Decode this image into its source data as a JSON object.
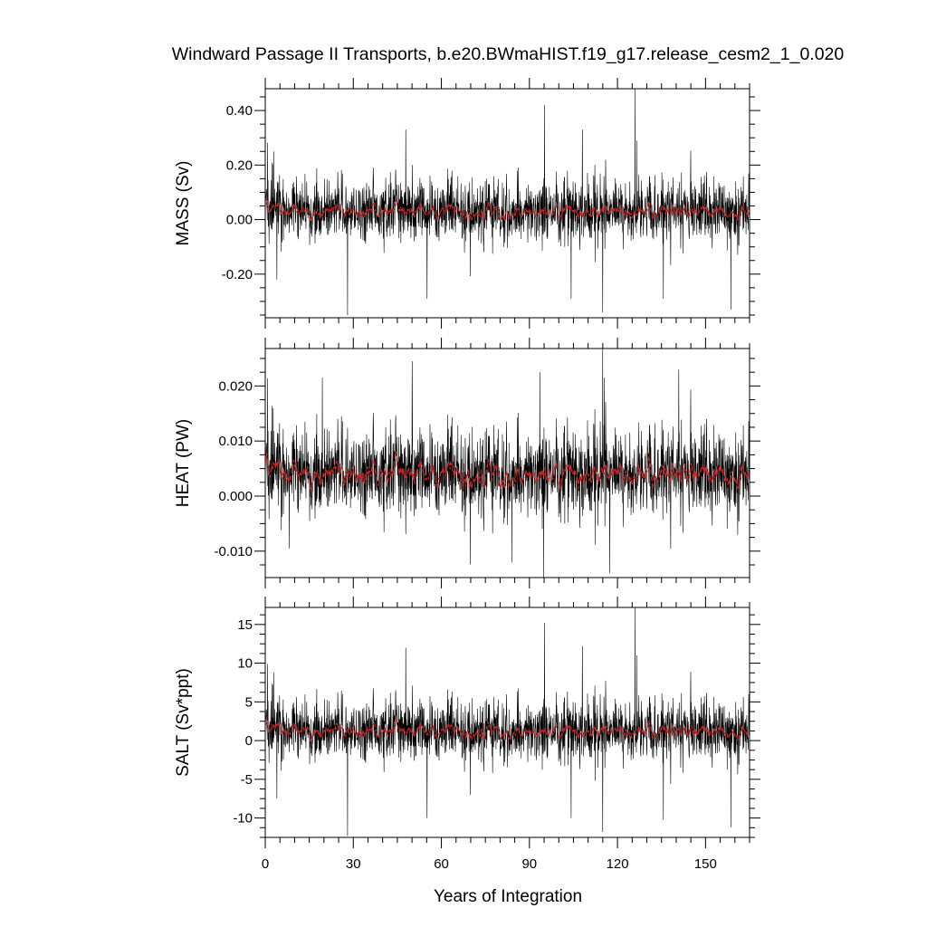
{
  "chart_data": [
    {
      "type": "line",
      "title": "Windward Passage II Transports, b.e20.BWmaHIST.f19_g17.release_cesm2_1_0.020",
      "ylabel": "MASS (Sv)",
      "xlabel": "",
      "xlim": [
        0,
        165
      ],
      "ylim": [
        -0.36,
        0.48
      ],
      "xticks": [
        0,
        30,
        60,
        90,
        120,
        150
      ],
      "yticks": [
        -0.2,
        0.0,
        0.2,
        0.4
      ],
      "ytick_labels": [
        "-0.20",
        "0.00",
        "0.20",
        "0.40"
      ],
      "series": [
        {
          "role": "raw",
          "color": "#000000",
          "n_points": 1980,
          "mean": 0.03,
          "sd": 0.055,
          "spikes": [
            [
              28.0,
              -0.35
            ],
            [
              95.1,
              0.42
            ],
            [
              114.9,
              -0.34
            ],
            [
              125.9,
              0.48
            ],
            [
              126.5,
              0.29
            ],
            [
              135.6,
              -0.29
            ],
            [
              55.1,
              -0.29
            ],
            [
              104.2,
              -0.29
            ],
            [
              158.6,
              -0.33
            ],
            [
              47.8,
              0.33
            ],
            [
              108.0,
              0.33
            ],
            [
              2.8,
              0.25
            ],
            [
              3.9,
              -0.22
            ]
          ]
        },
        {
          "role": "running-mean",
          "color": "#d62020",
          "n_points": 1980,
          "mean": 0.03,
          "sd": 0.013
        }
      ]
    },
    {
      "type": "line",
      "title": "",
      "ylabel": "HEAT (PW)",
      "xlabel": "",
      "xlim": [
        0,
        165
      ],
      "ylim": [
        -0.0148,
        0.0268
      ],
      "xticks": [
        0,
        30,
        60,
        90,
        120,
        150
      ],
      "yticks": [
        -0.01,
        0.0,
        0.01,
        0.02
      ],
      "ytick_labels": [
        "-0.010",
        "0.000",
        "0.010",
        "0.020"
      ],
      "series": [
        {
          "role": "raw",
          "color": "#000000",
          "n_points": 1980,
          "mean": 0.004,
          "sd": 0.0038,
          "spikes": [
            [
              114.9,
              0.0267
            ],
            [
              50.0,
              0.0245
            ],
            [
              93.5,
              0.0225
            ],
            [
              115.5,
              0.0215
            ],
            [
              140.8,
              0.023
            ],
            [
              19.4,
              0.0215
            ],
            [
              94.8,
              -0.0148
            ],
            [
              117.3,
              -0.014
            ],
            [
              8.2,
              -0.0095
            ],
            [
              84.0,
              -0.012
            ]
          ]
        },
        {
          "role": "running-mean",
          "color": "#d62020",
          "n_points": 1980,
          "mean": 0.004,
          "sd": 0.0011
        }
      ]
    },
    {
      "type": "line",
      "title": "",
      "ylabel": "SALT (Sv*ppt)",
      "xlabel": "Years of Integration",
      "xlim": [
        0,
        165
      ],
      "ylim": [
        -12.5,
        17.2
      ],
      "xticks": [
        0,
        30,
        60,
        90,
        120,
        150
      ],
      "xtick_labels": [
        "0",
        "30",
        "60",
        "90",
        "120",
        "150"
      ],
      "yticks": [
        -10,
        -5,
        0,
        5,
        10,
        15
      ],
      "ytick_labels": [
        "-10",
        "-5",
        "0",
        "5",
        "10",
        "15"
      ],
      "series": [
        {
          "role": "raw",
          "color": "#000000",
          "n_points": 1980,
          "mean": 1.2,
          "sd": 1.9,
          "spikes": [
            [
              28.0,
              -12.3
            ],
            [
              95.1,
              15.2
            ],
            [
              114.9,
              -11.8
            ],
            [
              125.9,
              17.2
            ],
            [
              126.5,
              11.0
            ],
            [
              135.6,
              -10.2
            ],
            [
              55.1,
              -10.0
            ],
            [
              104.2,
              -10.0
            ],
            [
              158.6,
              -11.2
            ],
            [
              47.8,
              12.0
            ],
            [
              108.0,
              12.2
            ],
            [
              2.8,
              8.8
            ],
            [
              3.9,
              -7.5
            ]
          ]
        },
        {
          "role": "running-mean",
          "color": "#d62020",
          "n_points": 1980,
          "mean": 1.2,
          "sd": 0.45
        }
      ]
    }
  ]
}
